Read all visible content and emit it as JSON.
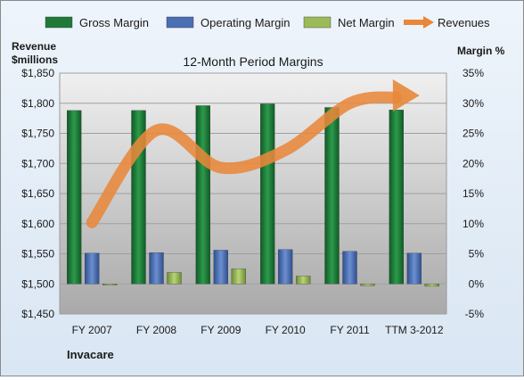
{
  "chart_data": {
    "type": "bar",
    "title": "12-Month Period Margins",
    "company": "Invacare",
    "left_axis": {
      "label_line1": "Revenue",
      "label_line2": "$millions",
      "ylim": [
        1450,
        1850
      ],
      "ticks": [
        "$1,450",
        "$1,500",
        "$1,550",
        "$1,600",
        "$1,650",
        "$1,700",
        "$1,750",
        "$1,800",
        "$1,850"
      ],
      "tick_values": [
        1450,
        1500,
        1550,
        1600,
        1650,
        1700,
        1750,
        1800,
        1850
      ]
    },
    "right_axis": {
      "label": "Margin %",
      "ylim": [
        -5,
        35
      ],
      "ticks": [
        "-5%",
        "0%",
        "5%",
        "10%",
        "15%",
        "20%",
        "25%",
        "30%",
        "35%"
      ],
      "tick_values": [
        -5,
        0,
        5,
        10,
        15,
        20,
        25,
        30,
        35
      ]
    },
    "categories": [
      "FY 2007",
      "FY 2008",
      "FY 2009",
      "FY 2010",
      "FY 2011",
      "TTM 3-2012"
    ],
    "series": [
      {
        "name": "Gross Margin",
        "axis": "right",
        "kind": "bar",
        "color": "#1f7a3a",
        "values": [
          28.8,
          28.8,
          29.6,
          29.9,
          29.3,
          28.9
        ]
      },
      {
        "name": "Operating Margin",
        "axis": "right",
        "kind": "bar",
        "color": "#4a6fb5",
        "values": [
          5.1,
          5.2,
          5.6,
          5.7,
          5.4,
          5.1
        ]
      },
      {
        "name": "Net Margin",
        "axis": "right",
        "kind": "bar",
        "color": "#9bbb59",
        "values": [
          -0.2,
          1.9,
          2.5,
          1.3,
          -0.3,
          -0.4
        ]
      },
      {
        "name": "Revenues",
        "axis": "left",
        "kind": "line",
        "color": "#e8873a",
        "values": [
          1602,
          1755,
          1693,
          1722,
          1800,
          1810
        ]
      }
    ],
    "grid": true,
    "legend": "top"
  }
}
